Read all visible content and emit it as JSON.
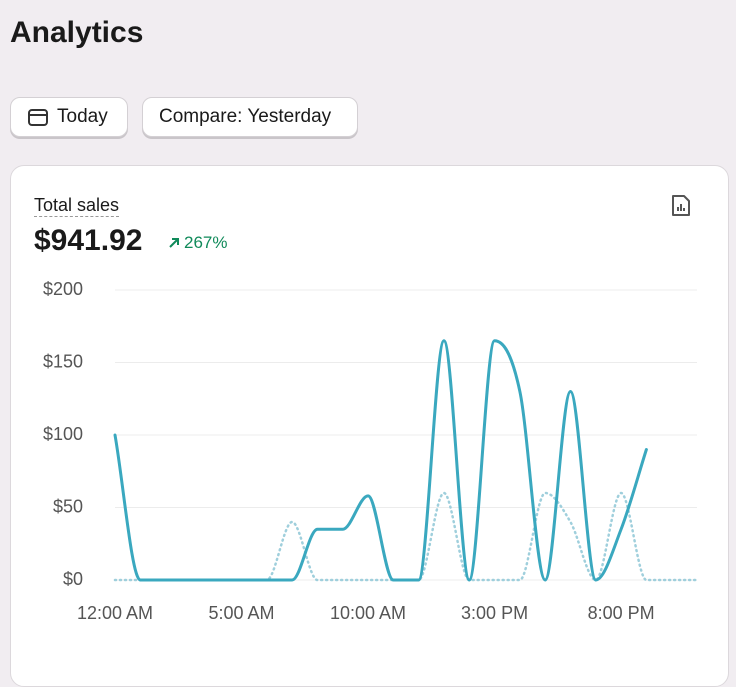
{
  "page": {
    "title": "Analytics",
    "buttons": [
      "Today",
      "Compare: Yesterday"
    ]
  },
  "card": {
    "label": "Total sales",
    "value": "$941.92",
    "change": "267%"
  },
  "chart_data": {
    "type": "line",
    "categories": [
      "12:00 AM",
      null,
      null,
      null,
      null,
      "5:00 AM",
      null,
      null,
      null,
      null,
      "10:00 AM",
      null,
      null,
      null,
      null,
      "3:00 PM",
      null,
      null,
      null,
      null,
      "8:00 PM",
      null,
      null,
      null
    ],
    "series": [
      {
        "color": "#3aa8bf",
        "style": "solid",
        "values": [
          100,
          0,
          0,
          0,
          0,
          0,
          0,
          0,
          35,
          35,
          58,
          0,
          0,
          165,
          0,
          165,
          130,
          0,
          130,
          0,
          35,
          90,
          null,
          null
        ]
      },
      {
        "color": "#9fcfdc",
        "style": "dotted",
        "values": [
          0,
          0,
          0,
          0,
          0,
          0,
          0,
          40,
          0,
          0,
          0,
          0,
          0,
          60,
          0,
          0,
          0,
          60,
          40,
          0,
          60,
          0,
          0,
          0
        ]
      }
    ],
    "ylim": [
      0,
      200
    ],
    "yticks": [
      {
        "value": 0,
        "label": "$0"
      },
      {
        "value": 50,
        "label": "$50"
      },
      {
        "value": 100,
        "label": "$100"
      },
      {
        "value": 150,
        "label": "$150"
      },
      {
        "value": 200,
        "label": "$200"
      }
    ],
    "grid": true
  }
}
